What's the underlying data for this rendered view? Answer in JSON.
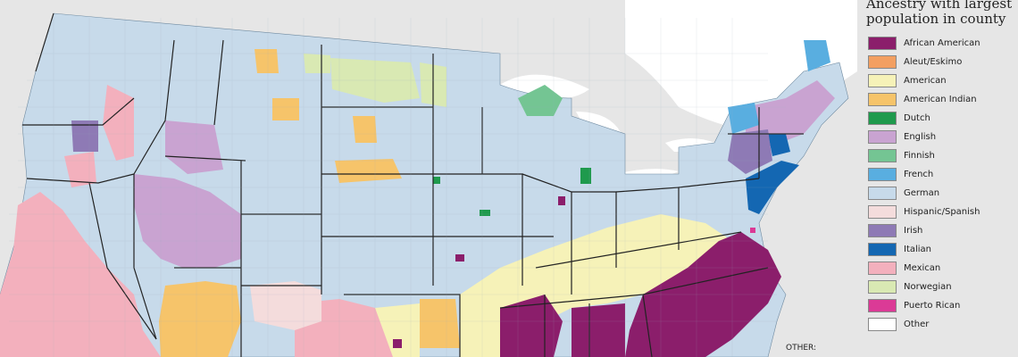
{
  "legend": {
    "title_line1": "Ancestry with largest",
    "title_line2": "population in county",
    "items": [
      {
        "label": "African American",
        "color": "#8b1e6b"
      },
      {
        "label": "Aleut/Eskimo",
        "color": "#f39f61"
      },
      {
        "label": "American",
        "color": "#f6f2b8"
      },
      {
        "label": "American Indian",
        "color": "#f6c46a"
      },
      {
        "label": "Dutch",
        "color": "#1f9a4d"
      },
      {
        "label": "English",
        "color": "#c9a3d1"
      },
      {
        "label": "Finnish",
        "color": "#74c593"
      },
      {
        "label": "French",
        "color": "#59aee0"
      },
      {
        "label": "German",
        "color": "#c7daea"
      },
      {
        "label": "Hispanic/Spanish",
        "color": "#f4dcdc"
      },
      {
        "label": "Irish",
        "color": "#8e7ab5"
      },
      {
        "label": "Italian",
        "color": "#1467b2"
      },
      {
        "label": "Mexican",
        "color": "#f3b0bd"
      },
      {
        "label": "Norwegian",
        "color": "#d9e9b3"
      },
      {
        "label": "Puerto Rican",
        "color": "#db3a96"
      },
      {
        "label": "Other",
        "color": "#ffffff"
      }
    ]
  },
  "other_note": "OTHER:"
}
